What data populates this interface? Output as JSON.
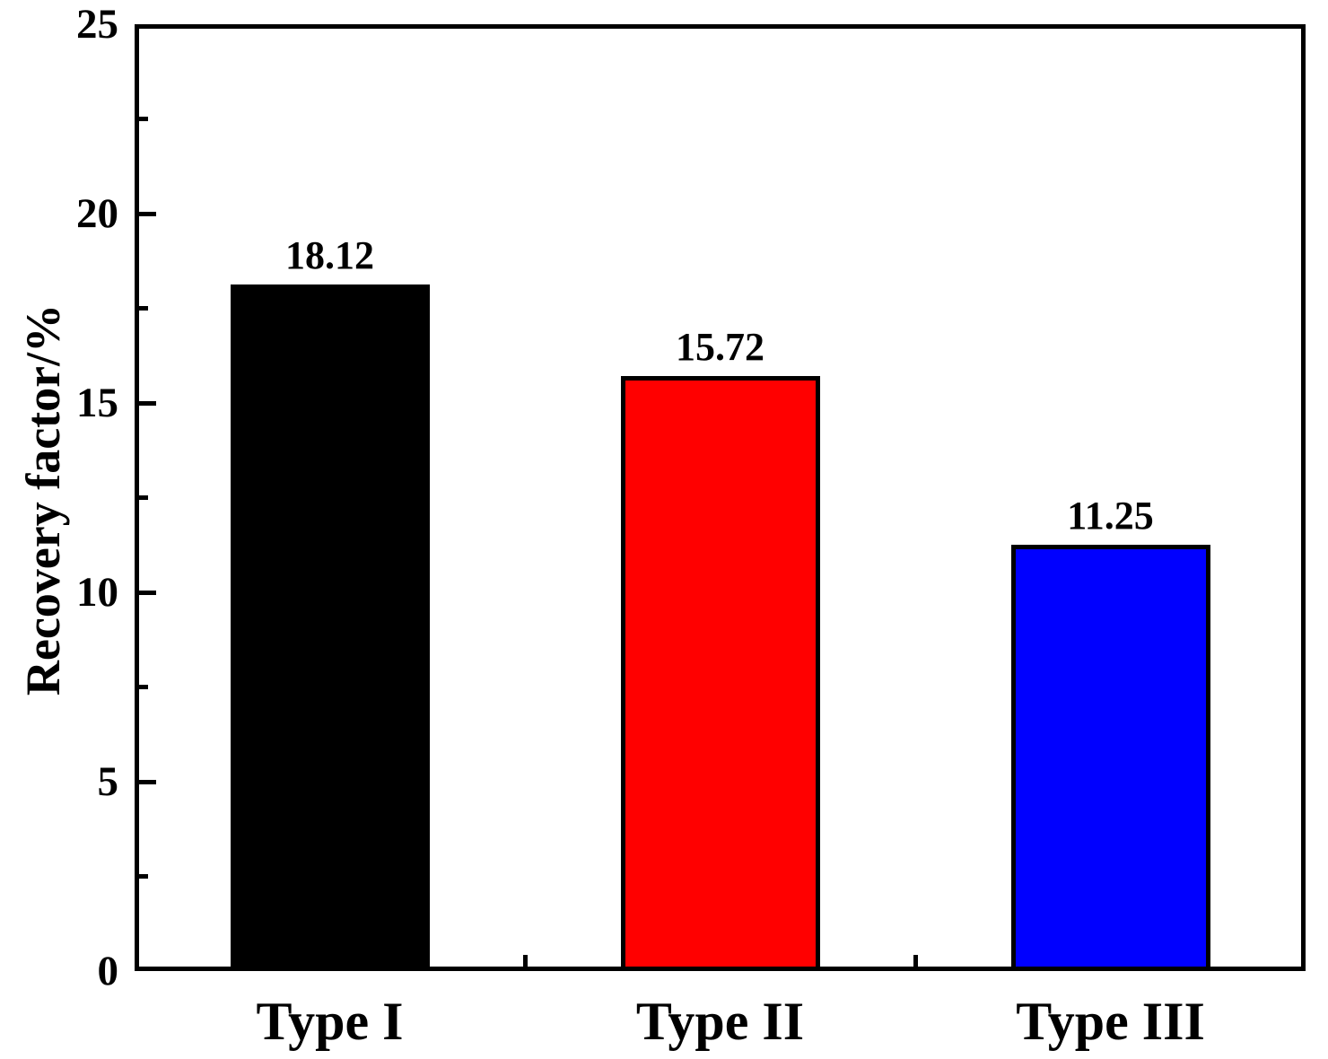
{
  "chart_data": {
    "type": "bar",
    "title": "",
    "categories": [
      "Type I",
      "Type II",
      "Type III"
    ],
    "values": [
      18.12,
      15.72,
      11.25
    ],
    "value_labels": [
      "18.12",
      "15.72",
      "11.25"
    ],
    "bar_colors": [
      "#000000",
      "#ff0000",
      "#0000ff"
    ],
    "bar_border_color": "#000000",
    "xlabel": "",
    "ylabel": "Recovery factor/%",
    "ylim": [
      0,
      25
    ],
    "ytick_values": [
      0,
      5,
      10,
      15,
      20,
      25
    ],
    "ytick_labels": [
      "0",
      "5",
      "10",
      "15",
      "20",
      "25"
    ],
    "yminor_values": [
      2.5,
      7.5,
      12.5,
      17.5,
      22.5
    ],
    "grid": "off",
    "legend": "none",
    "frame": "full-box",
    "tick_direction": "in"
  }
}
